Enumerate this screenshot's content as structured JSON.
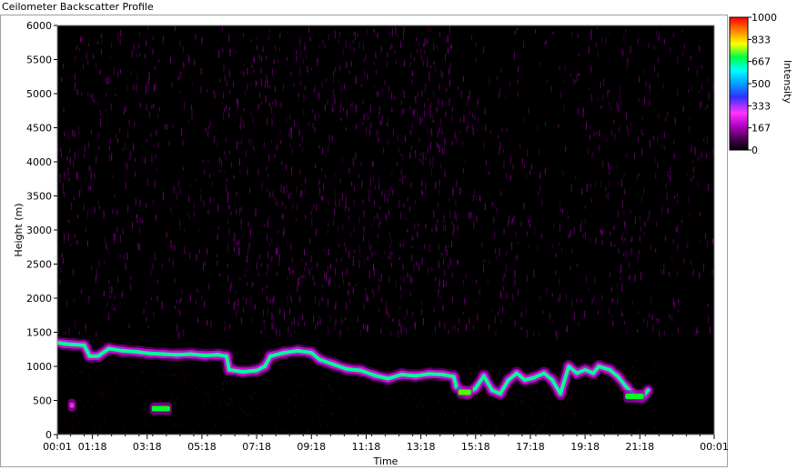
{
  "window": {
    "title": "Ceilometer Backscatter Profile"
  },
  "chart_data": {
    "type": "heatmap",
    "title": "",
    "xlabel": "Time",
    "ylabel": "Height (m)",
    "colorbar_label": "Intensity",
    "x_ticks": [
      "00:01",
      "01:18",
      "03:18",
      "05:18",
      "07:18",
      "09:18",
      "11:18",
      "13:18",
      "15:18",
      "17:18",
      "19:18",
      "21:18",
      "00:01"
    ],
    "x_tick_hours": [
      0.0167,
      1.3,
      3.3,
      5.3,
      7.3,
      9.3,
      11.3,
      13.3,
      15.3,
      17.3,
      19.3,
      21.3,
      24.0167
    ],
    "xlim_hours": [
      0.0167,
      24.0167
    ],
    "y_ticks": [
      0,
      500,
      1000,
      1500,
      2000,
      2500,
      3000,
      3500,
      4000,
      4500,
      5000,
      5500,
      6000
    ],
    "ylim": [
      0,
      6000
    ],
    "colorbar_ticks": [
      0,
      167,
      333,
      500,
      667,
      833,
      1000
    ],
    "colorbar_range": [
      0,
      1000
    ],
    "colormap": [
      "#000000",
      "#5a0060",
      "#b000c0",
      "#ff33ff",
      "#0000ff",
      "#00ffff",
      "#00ff00",
      "#ffff00",
      "#ff8000",
      "#ff0000"
    ],
    "background_color": "#000000",
    "upper_noise_intensity": 120,
    "cloud_layer": {
      "description": "main backscatter layer height (m) over time",
      "points": [
        [
          0.02,
          1350
        ],
        [
          0.3,
          1330
        ],
        [
          0.6,
          1320
        ],
        [
          1.0,
          1310
        ],
        [
          1.2,
          1150
        ],
        [
          1.5,
          1150
        ],
        [
          1.9,
          1260
        ],
        [
          2.4,
          1230
        ],
        [
          3.0,
          1210
        ],
        [
          3.4,
          1190
        ],
        [
          3.9,
          1180
        ],
        [
          4.4,
          1170
        ],
        [
          4.9,
          1180
        ],
        [
          5.4,
          1160
        ],
        [
          5.9,
          1170
        ],
        [
          6.2,
          1150
        ],
        [
          6.3,
          950
        ],
        [
          6.8,
          920
        ],
        [
          7.3,
          940
        ],
        [
          7.6,
          1000
        ],
        [
          7.8,
          1150
        ],
        [
          8.3,
          1200
        ],
        [
          8.8,
          1230
        ],
        [
          9.3,
          1200
        ],
        [
          9.6,
          1100
        ],
        [
          10.1,
          1030
        ],
        [
          10.6,
          960
        ],
        [
          11.1,
          940
        ],
        [
          11.6,
          870
        ],
        [
          12.1,
          820
        ],
        [
          12.6,
          880
        ],
        [
          13.1,
          860
        ],
        [
          13.6,
          890
        ],
        [
          14.1,
          880
        ],
        [
          14.5,
          850
        ],
        [
          14.6,
          700
        ],
        [
          15.0,
          600
        ],
        [
          15.3,
          680
        ],
        [
          15.6,
          860
        ],
        [
          15.9,
          650
        ],
        [
          16.2,
          600
        ],
        [
          16.5,
          800
        ],
        [
          16.8,
          900
        ],
        [
          17.1,
          800
        ],
        [
          17.4,
          830
        ],
        [
          17.8,
          900
        ],
        [
          18.1,
          800
        ],
        [
          18.4,
          600
        ],
        [
          18.7,
          1000
        ],
        [
          19.0,
          900
        ],
        [
          19.3,
          950
        ],
        [
          19.6,
          900
        ],
        [
          19.8,
          1000
        ],
        [
          20.2,
          950
        ],
        [
          20.5,
          850
        ],
        [
          20.8,
          700
        ],
        [
          21.1,
          580
        ],
        [
          21.4,
          550
        ],
        [
          21.6,
          650
        ]
      ],
      "peak_intensity": 600
    },
    "low_patches": [
      {
        "hour_start": 0.4,
        "hour_end": 0.7,
        "height": 430,
        "intensity": 300
      },
      {
        "hour_start": 3.4,
        "hour_end": 4.2,
        "height": 380,
        "intensity": 650
      },
      {
        "hour_start": 14.6,
        "hour_end": 15.2,
        "height": 620,
        "intensity": 700
      },
      {
        "hour_start": 20.7,
        "hour_end": 21.5,
        "height": 560,
        "intensity": 650
      }
    ]
  }
}
